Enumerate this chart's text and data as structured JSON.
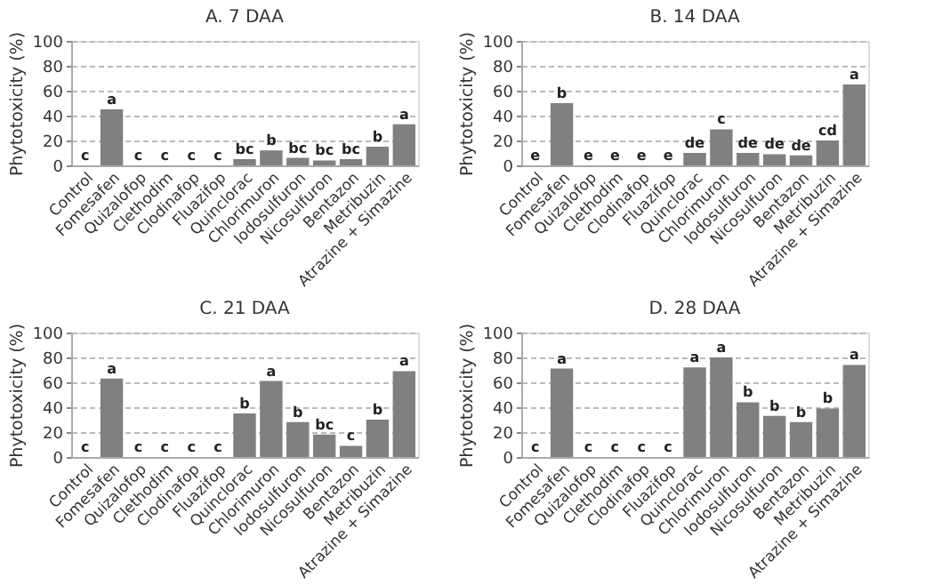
{
  "chart_data": [
    {
      "type": "bar",
      "title": "A. 7 DAA",
      "ylabel": "Phytotoxicity (%)",
      "categories": [
        "Control",
        "Fomesafen",
        "Quizalofop",
        "Clethodim",
        "Clodinafop",
        "Fluazifop",
        "Quinclorac",
        "Chlorimuron",
        "Iodosulfuron",
        "Nicosulfuron",
        "Bentazon",
        "Metribuzin",
        "Atrazine + Simazine"
      ],
      "values": [
        0,
        45,
        0,
        0,
        0,
        0,
        5,
        12,
        6,
        4,
        5,
        15,
        33
      ],
      "value_labels": [
        "c",
        "a",
        "c",
        "c",
        "c",
        "c",
        "bc",
        "b",
        "bc",
        "bc",
        "bc",
        "b",
        "a"
      ],
      "color": "#808080",
      "ylim": [
        0,
        100
      ],
      "yticks": [
        0,
        20,
        40,
        60,
        80,
        100
      ],
      "grid": "y"
    },
    {
      "type": "bar",
      "title": "B. 14 DAA",
      "ylabel": "Phytotoxicity (%)",
      "categories": [
        "Control",
        "Fomesafen",
        "Quizalofop",
        "Clethodim",
        "Clodinafop",
        "Fluazifop",
        "Quinclorac",
        "Chlorimuron",
        "Iodosulfuron",
        "Nicosulfuron",
        "Bentazon",
        "Metribuzin",
        "Atrazine + Simazine"
      ],
      "values": [
        0,
        50,
        0,
        0,
        0,
        0,
        10,
        29,
        10,
        9,
        8,
        20,
        65
      ],
      "value_labels": [
        "e",
        "b",
        "e",
        "e",
        "e",
        "e",
        "de",
        "c",
        "de",
        "de",
        "de",
        "cd",
        "a"
      ],
      "color": "#808080",
      "ylim": [
        0,
        100
      ],
      "yticks": [
        0,
        20,
        40,
        60,
        80,
        100
      ],
      "grid": "y"
    },
    {
      "type": "bar",
      "title": "C. 21 DAA",
      "ylabel": "Phytotoxicity (%)",
      "categories": [
        "Control",
        "Fomesafen",
        "Quizalofop",
        "Clethodim",
        "Clodinafop",
        "Fluazifop",
        "Quinclorac",
        "Chlorimuron",
        "Iodosulfuron",
        "Nicosulfuron",
        "Bentazon",
        "Metribuzin",
        "Atrazine + Simazine"
      ],
      "values": [
        0,
        63,
        0,
        0,
        0,
        0,
        35,
        61,
        28,
        18,
        9,
        30,
        69
      ],
      "value_labels": [
        "c",
        "a",
        "c",
        "c",
        "c",
        "c",
        "b",
        "a",
        "b",
        "bc",
        "c",
        "b",
        "a"
      ],
      "color": "#808080",
      "ylim": [
        0,
        100
      ],
      "yticks": [
        0,
        20,
        40,
        60,
        80,
        100
      ],
      "grid": "y"
    },
    {
      "type": "bar",
      "title": "D. 28 DAA",
      "ylabel": "Phytotoxicity (%)",
      "categories": [
        "Control",
        "Fomesafen",
        "Quizalofop",
        "Clethodim",
        "Clodinafop",
        "Fluazifop",
        "Quinclorac",
        "Chlorimuron",
        "Iodosulfuron",
        "Nicosulfuron",
        "Bentazon",
        "Metribuzin",
        "Atrazine + Simazine"
      ],
      "values": [
        0,
        71,
        0,
        0,
        0,
        0,
        72,
        80,
        44,
        33,
        28,
        39,
        74
      ],
      "value_labels": [
        "c",
        "a",
        "c",
        "c",
        "c",
        "c",
        "a",
        "a",
        "b",
        "b",
        "b",
        "b",
        "a"
      ],
      "color": "#808080",
      "ylim": [
        0,
        100
      ],
      "yticks": [
        0,
        20,
        40,
        60,
        80,
        100
      ],
      "grid": "y"
    }
  ]
}
